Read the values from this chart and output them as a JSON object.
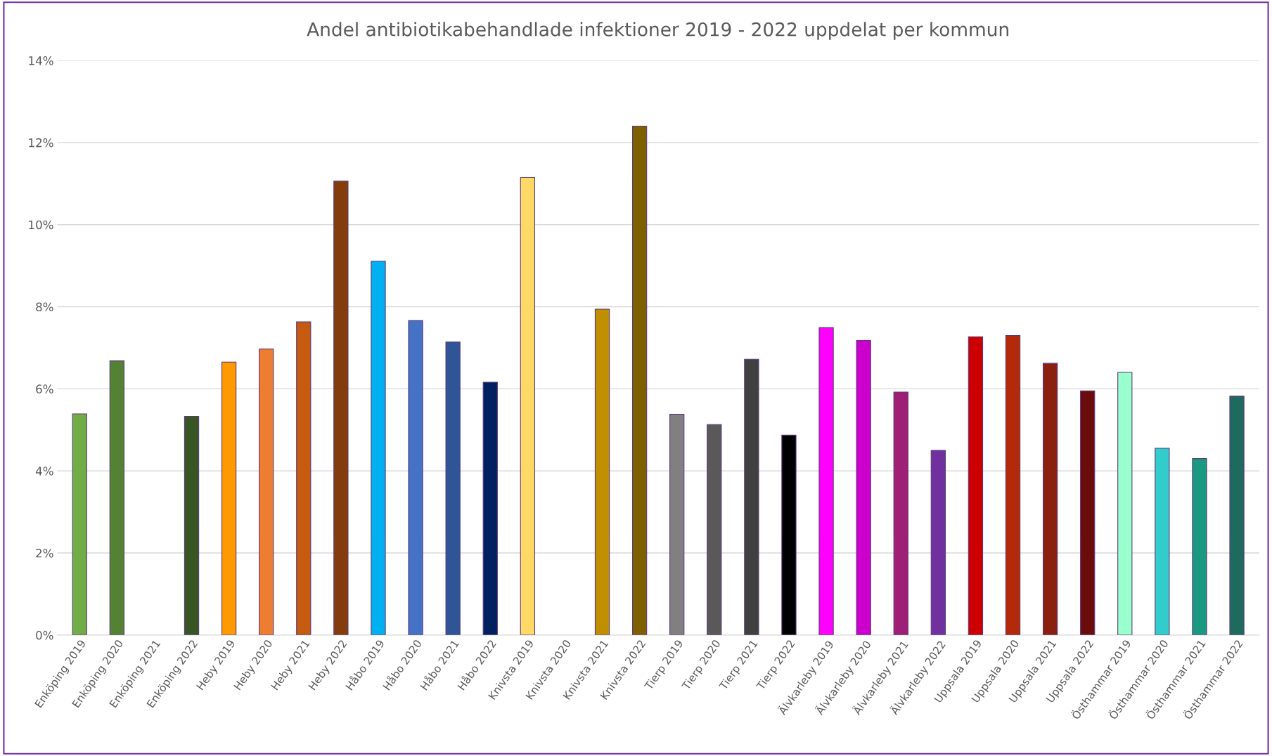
{
  "chart_data": {
    "type": "bar",
    "title": "Andel antibiotikabehandlade infektioner 2019 - 2022 uppdelat per kommun",
    "categories": [
      "Enköping 2019",
      "Enköping 2020",
      "Enköping 2021",
      "Enköping 2022",
      "Heby 2019",
      "Heby 2020",
      "Heby 2021",
      "Heby 2022",
      "Håbo 2019",
      "Håbo 2020",
      "Håbo 2021",
      "Håbo 2022",
      "Knivsta 2019",
      "Knivsta 2020",
      "Knivsta 2021",
      "Knivsta 2022",
      "Tierp 2019",
      "Tierp 2020",
      "Tierp 2021",
      "Tierp 2022",
      "Älvkarleby 2019",
      "Älvkarleby 2020",
      "Älvkarleby 2021",
      "Älvkarleby 2022",
      "Uppsala 2019",
      "Uppsala 2020",
      "Uppsala 2021",
      "Uppsala 2022",
      "Östhammar 2019",
      "Östhammar 2020",
      "Östhammar 2021",
      "Östhammar 2022"
    ],
    "values": [
      5.39,
      6.68,
      null,
      5.33,
      6.65,
      6.97,
      7.63,
      11.06,
      9.11,
      7.66,
      7.14,
      6.16,
      11.15,
      null,
      7.94,
      12.4,
      5.38,
      5.13,
      6.72,
      4.87,
      7.49,
      7.18,
      5.92,
      4.5,
      7.27,
      7.3,
      6.62,
      5.95,
      6.4,
      4.55,
      4.3,
      5.82
    ],
    "colors": [
      "#70ad47",
      "#548235",
      "#548235",
      "#375623",
      "#ff9900",
      "#ed7d31",
      "#c55a11",
      "#843c0c",
      "#00b0f0",
      "#4472c4",
      "#2f5597",
      "#002060",
      "#ffd966",
      "#bf8f00",
      "#bf8f00",
      "#7f6000",
      "#808080",
      "#595959",
      "#404040",
      "#000000",
      "#ff00ff",
      "#cc00cc",
      "#9e1f75",
      "#7030a0",
      "#cc0000",
      "#b22a0a",
      "#8b2010",
      "#6b0c0c",
      "#99ffcc",
      "#33cccc",
      "#1a9980",
      "#1e6b5e"
    ],
    "ylim": [
      0,
      14
    ],
    "yticks": [
      {
        "value": 0,
        "label": "0%"
      },
      {
        "value": 2,
        "label": "2%"
      },
      {
        "value": 4,
        "label": "4%"
      },
      {
        "value": 6,
        "label": "6%"
      },
      {
        "value": 8,
        "label": "8%"
      },
      {
        "value": 10,
        "label": "10%"
      },
      {
        "value": 12,
        "label": "12%"
      },
      {
        "value": 14,
        "label": "14%"
      }
    ],
    "grid": "y"
  }
}
